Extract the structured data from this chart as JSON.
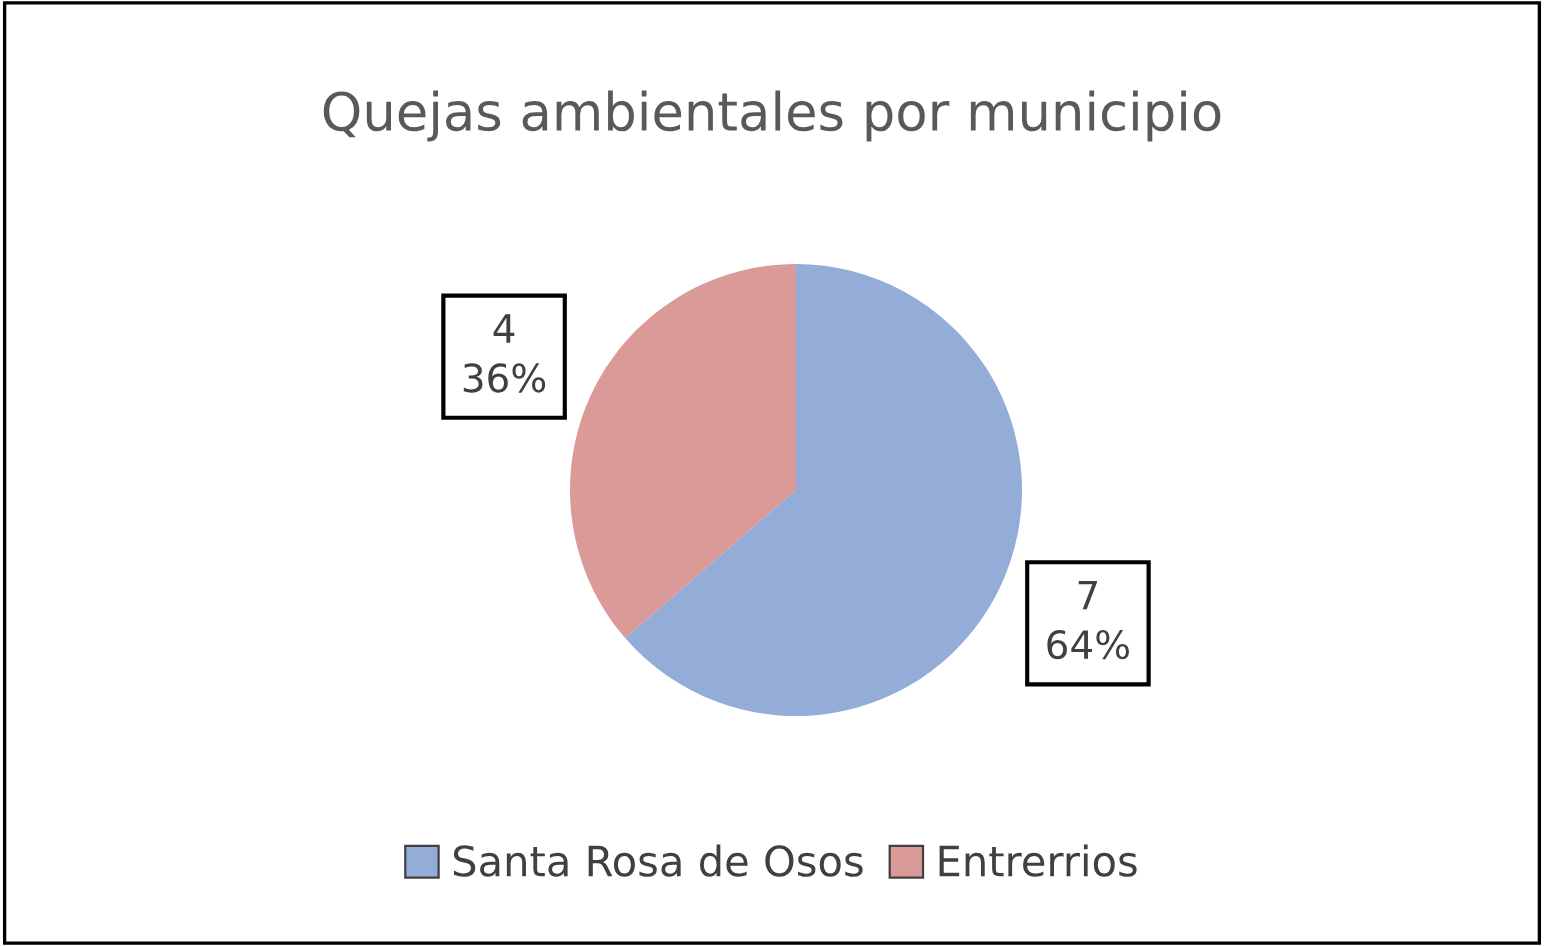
{
  "chart_data": {
    "type": "pie",
    "title": "Quejas ambientales por municipio",
    "categories": [
      "Santa Rosa de Osos",
      "Entrerrios"
    ],
    "values": [
      7,
      4
    ],
    "colors": [
      "#94acd8",
      "#d99a98"
    ],
    "value_labels": [
      "7\n64%",
      "4\n36%"
    ],
    "legend": "bottom"
  }
}
